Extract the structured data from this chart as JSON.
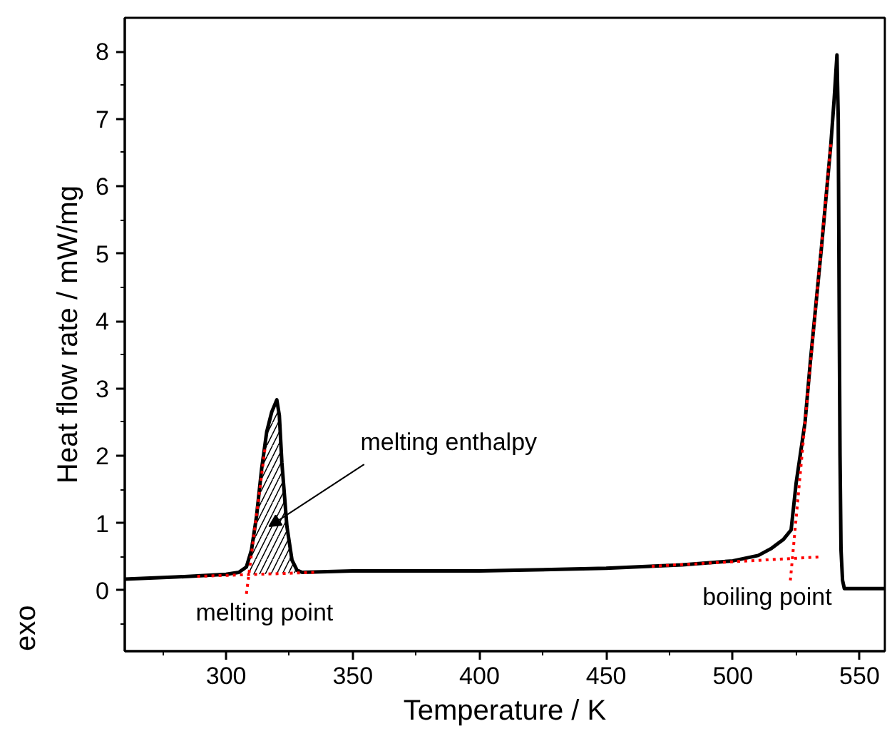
{
  "chart_data": {
    "type": "line",
    "xlabel": "Temperature / K",
    "ylabel": "Heat flow rate / mW/mg",
    "xlim": [
      260,
      560
    ],
    "ylim": [
      -0.9,
      8.5
    ],
    "xticks": [
      {
        "value": 275,
        "label": null
      },
      300,
      {
        "value": 325,
        "label": null
      },
      350,
      {
        "value": 375,
        "label": null
      },
      400,
      {
        "value": 425,
        "label": null
      },
      450,
      {
        "value": 475,
        "label": null
      },
      500,
      {
        "value": 525,
        "label": null
      },
      550
    ],
    "yticks": [
      {
        "value": -0.5,
        "label": null
      },
      0,
      {
        "value": 0.5,
        "label": null
      },
      1,
      {
        "value": 1.5,
        "label": null
      },
      2,
      {
        "value": 2.5,
        "label": null
      },
      3,
      {
        "value": 3.5,
        "label": null
      },
      4,
      {
        "value": 4.5,
        "label": null
      },
      5,
      {
        "value": 5.5,
        "label": null
      },
      6,
      {
        "value": 6.5,
        "label": null
      },
      7,
      {
        "value": 7.5,
        "label": null
      },
      8
    ],
    "grid": false,
    "series": [
      {
        "type": "area",
        "color": "#000000",
        "x": [
          308,
          310,
          312,
          314,
          316,
          318,
          320,
          321,
          322,
          324,
          326,
          328,
          330
        ],
        "values": [
          0.35,
          0.6,
          1.1,
          1.8,
          2.35,
          2.65,
          2.83,
          2.6,
          1.9,
          0.95,
          0.45,
          0.3,
          0.27
        ]
      },
      {
        "color": "#000000",
        "line_style": "solid",
        "x": [
          260,
          280,
          300,
          305,
          308,
          310,
          312,
          314,
          316,
          318,
          320,
          321,
          322,
          324,
          326,
          328,
          330,
          350,
          400,
          450,
          480,
          500,
          510,
          515,
          520,
          523,
          525,
          528.5,
          530.6,
          535,
          538.7,
          540,
          541.1,
          541.6,
          542,
          542.3,
          542.7,
          543.3,
          544,
          560
        ],
        "values": [
          0.17,
          0.2,
          0.24,
          0.27,
          0.35,
          0.6,
          1.1,
          1.8,
          2.35,
          2.65,
          2.83,
          2.6,
          1.9,
          0.95,
          0.45,
          0.3,
          0.27,
          0.29,
          0.29,
          0.33,
          0.38,
          0.44,
          0.52,
          0.62,
          0.76,
          0.9,
          1.6,
          2.5,
          3.4,
          5.1,
          6.63,
          7.3,
          7.95,
          7.0,
          4.0,
          2.0,
          0.6,
          0.15,
          0.03,
          0.03
        ]
      },
      {
        "color": "#ff0000",
        "line_style": "dotted",
        "x": [
          288.6,
          335.3
        ],
        "values": [
          0.21,
          0.27
        ]
      },
      {
        "color": "#ff0000",
        "line_style": "dotted",
        "x": [
          308,
          315.4
        ],
        "values": [
          -0.05,
          2.12
        ]
      },
      {
        "color": "#ff0000",
        "line_style": "dotted",
        "x": [
          468,
          535
        ],
        "values": [
          0.36,
          0.5
        ]
      },
      {
        "color": "#ff0000",
        "line_style": "dotted",
        "x": [
          522.7,
          538.7
        ],
        "values": [
          0.15,
          6.63
        ]
      }
    ],
    "annotations": [
      "melting enthalpy",
      {
        "text": "melting point",
        "x": 308,
        "y": 0.22
      },
      {
        "text": "boiling point",
        "x": 523,
        "y": 0.45
      },
      "exo"
    ]
  }
}
